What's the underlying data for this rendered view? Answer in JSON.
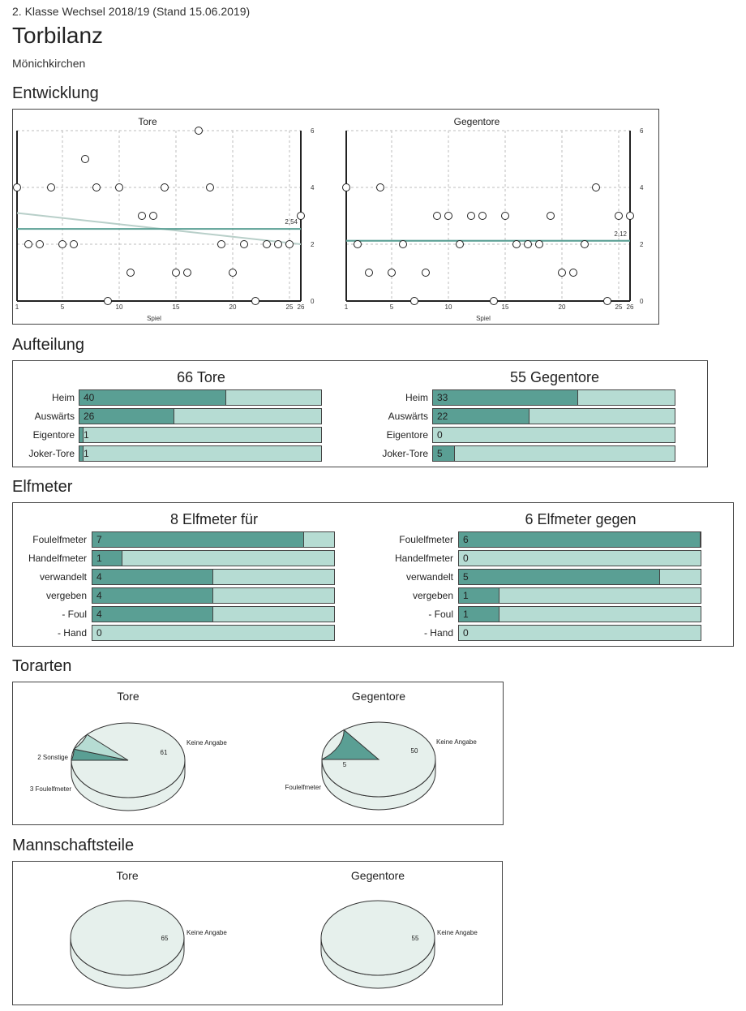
{
  "header": {
    "league": "2. Klasse Wechsel 2018/19 (Stand 15.06.2019)",
    "title": "Torbilanz",
    "team": "Mönichkirchen"
  },
  "sections": {
    "entwicklung": "Entwicklung",
    "aufteilung": "Aufteilung",
    "elfmeter": "Elfmeter",
    "torarten": "Torarten",
    "mannschaftsteile": "Mannschaftsteile"
  },
  "chart_data": [
    {
      "type": "scatter",
      "title": "Tore",
      "xlabel": "Spiel",
      "ylabel": "",
      "xlim": [
        1,
        26
      ],
      "ylim": [
        0,
        6
      ],
      "x_ticks": [
        1,
        5,
        10,
        15,
        20,
        25,
        26
      ],
      "y_ticks": [
        0,
        2,
        4,
        6
      ],
      "grid": true,
      "x": [
        1,
        2,
        3,
        4,
        5,
        6,
        7,
        8,
        9,
        10,
        11,
        12,
        13,
        14,
        15,
        16,
        17,
        18,
        19,
        20,
        21,
        22,
        23,
        24,
        25,
        26
      ],
      "y": [
        4,
        2,
        2,
        4,
        2,
        2,
        5,
        4,
        0,
        4,
        1,
        3,
        3,
        4,
        1,
        1,
        6,
        4,
        2,
        1,
        2,
        0,
        2,
        2,
        2,
        3
      ],
      "average": 2.54,
      "average_label": "2,54",
      "trend": [
        3.1,
        2.0
      ],
      "colors": {
        "average": "#5a9f94",
        "trend": "#b8cfc9"
      }
    },
    {
      "type": "scatter",
      "title": "Gegentore",
      "xlabel": "Spiel",
      "ylabel": "",
      "xlim": [
        1,
        26
      ],
      "ylim": [
        0,
        6
      ],
      "x_ticks": [
        1,
        5,
        10,
        15,
        20,
        25,
        26
      ],
      "y_ticks": [
        0,
        2,
        4,
        6
      ],
      "grid": true,
      "x": [
        1,
        2,
        3,
        4,
        5,
        6,
        7,
        8,
        9,
        10,
        11,
        12,
        13,
        14,
        15,
        16,
        17,
        18,
        19,
        20,
        21,
        22,
        23,
        24,
        25,
        26
      ],
      "y": [
        4,
        2,
        1,
        4,
        1,
        2,
        0,
        1,
        3,
        3,
        2,
        3,
        3,
        0,
        3,
        2,
        2,
        2,
        3,
        1,
        1,
        2,
        4,
        0,
        3,
        3
      ],
      "average": 2.12,
      "average_label": "2,12",
      "trend": [
        2.12,
        2.12
      ],
      "colors": {
        "average": "#5a9f94",
        "trend": "#b8cfc9"
      }
    },
    {
      "type": "pie",
      "title": "Tore",
      "group": "Torarten",
      "slices": [
        {
          "label": "Keine Angabe",
          "value": 61,
          "value_label": "61"
        },
        {
          "label": "2 Sonstige",
          "value": 2,
          "value_label": ""
        },
        {
          "label": "3 Foulelfmeter",
          "value": 3,
          "value_label": ""
        }
      ]
    },
    {
      "type": "pie",
      "title": "Gegentore",
      "group": "Torarten",
      "slices": [
        {
          "label": "Keine Angabe",
          "value": 50,
          "value_label": "50"
        },
        {
          "label": "Foulelfmeter",
          "value": 5,
          "value_label": "5"
        }
      ]
    },
    {
      "type": "pie",
      "title": "Tore",
      "group": "Mannschaftsteile",
      "slices": [
        {
          "label": "Keine Angabe",
          "value": 65,
          "value_label": "65"
        }
      ]
    },
    {
      "type": "pie",
      "title": "Gegentore",
      "group": "Mannschaftsteile",
      "slices": [
        {
          "label": "Keine Angabe",
          "value": 55,
          "value_label": "55"
        }
      ]
    }
  ],
  "aufteilung": {
    "left": {
      "title": "66 Tore",
      "rows": [
        {
          "label": "Heim",
          "value": "40",
          "fraction": 0.606
        },
        {
          "label": "Auswärts",
          "value": "26",
          "fraction": 0.394
        },
        {
          "label": "Eigentore",
          "value": "1",
          "fraction": 0.015
        },
        {
          "label": "Joker-Tore",
          "value": "1",
          "fraction": 0.015
        }
      ]
    },
    "right": {
      "title": "55 Gegentore",
      "rows": [
        {
          "label": "Heim",
          "value": "33",
          "fraction": 0.6
        },
        {
          "label": "Auswärts",
          "value": "22",
          "fraction": 0.4
        },
        {
          "label": "Eigentore",
          "value": "0",
          "fraction": 0
        },
        {
          "label": "Joker-Tore",
          "value": "5",
          "fraction": 0.091
        }
      ]
    }
  },
  "elfmeter": {
    "left": {
      "title": "8 Elfmeter für",
      "rows": [
        {
          "label": "Foulelfmeter",
          "value": "7",
          "fraction": 0.875
        },
        {
          "label": "Handelfmeter",
          "value": "1",
          "fraction": 0.125
        },
        {
          "label": "verwandelt",
          "value": "4",
          "fraction": 0.5
        },
        {
          "label": "vergeben",
          "value": "4",
          "fraction": 0.5
        },
        {
          "label": "- Foul",
          "value": "4",
          "fraction": 0.5
        },
        {
          "label": "- Hand",
          "value": "0",
          "fraction": 0
        }
      ]
    },
    "right": {
      "title": "6 Elfmeter gegen",
      "rows": [
        {
          "label": "Foulelfmeter",
          "value": "6",
          "fraction": 1.0
        },
        {
          "label": "Handelfmeter",
          "value": "0",
          "fraction": 0
        },
        {
          "label": "verwandelt",
          "value": "5",
          "fraction": 0.833
        },
        {
          "label": "vergeben",
          "value": "1",
          "fraction": 0.167
        },
        {
          "label": "- Foul",
          "value": "1",
          "fraction": 0.167
        },
        {
          "label": "- Hand",
          "value": "0",
          "fraction": 0
        }
      ]
    }
  },
  "colors": {
    "bar_fill": "#5a9f94",
    "bar_track": "#b6dcd3",
    "pie_main": "#e6f0ec",
    "pie_dark": "#5a9f94",
    "pie_light": "#b6dcd3"
  }
}
